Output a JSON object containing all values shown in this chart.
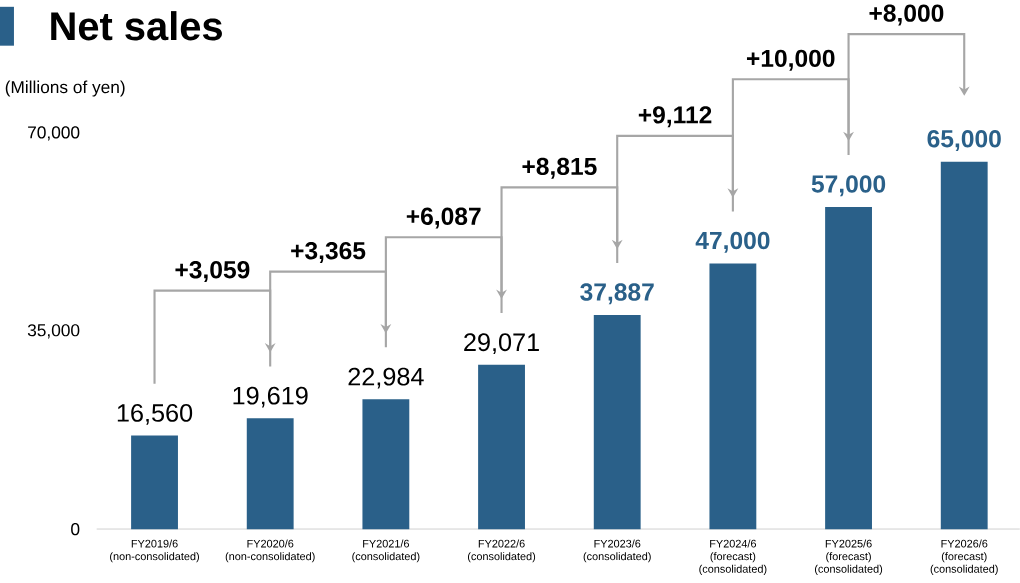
{
  "chart_data": {
    "type": "bar",
    "title": "Net sales",
    "ylabel": "(Millions of yen)",
    "categories": [
      "FY2019/6 (non-consolidated)",
      "FY2020/6 (non-consolidated)",
      "FY2021/6 (consolidated)",
      "FY2022/6 (consolidated)",
      "FY2023/6 (consolidated)",
      "FY2024/6 (forecast) (consolidated)",
      "FY2025/6 (forecast) (consolidated)",
      "FY2026/6 (forecast) (consolidated)"
    ],
    "values": [
      16560,
      19619,
      22984,
      29071,
      37887,
      47000,
      57000,
      65000
    ],
    "value_labels": [
      "16,560",
      "19,619",
      "22,984",
      "29,071",
      "37,887",
      "47,000",
      "57,000",
      "65,000"
    ],
    "color": "#2a6089",
    "ylim": [
      0,
      70000
    ],
    "yticks": [
      0,
      {
        "value": 35000,
        "label": "35,000"
      },
      {
        "value": 70000,
        "label": "70,000"
      }
    ],
    "grid": false,
    "annotations": [
      "+3,059",
      "+3,365",
      "+6,087",
      "+8,815",
      "+9,112",
      "+10,000",
      "+8,000"
    ]
  }
}
